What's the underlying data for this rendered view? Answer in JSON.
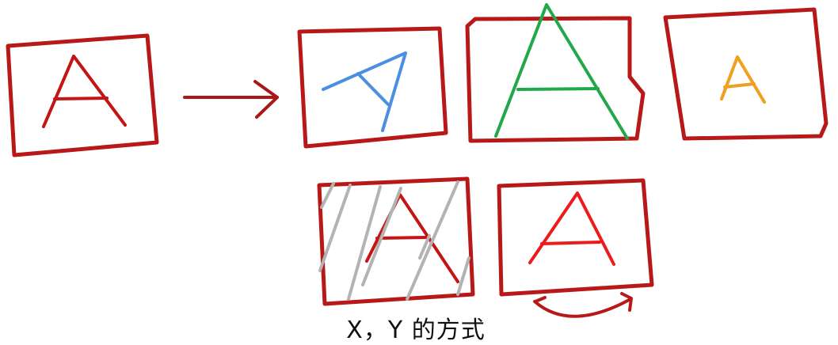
{
  "diagram": {
    "description_label": "",
    "colors": {
      "frame": "#b81818",
      "arrow": "#a81818",
      "letter_original": "#c41414",
      "letter_rotated": "#4a8fe0",
      "letter_stretched": "#22a84a",
      "letter_scaled": "#f0a020",
      "hatch": "#b3b3b3",
      "letter_flipped": "#ee1b1b",
      "flip_arrow": "#b81818"
    },
    "panels": [
      {
        "id": "original",
        "letter": "A"
      },
      {
        "id": "rotated",
        "letter": "A"
      },
      {
        "id": "stretched",
        "letter": "A"
      },
      {
        "id": "shrunk",
        "letter": "A"
      },
      {
        "id": "noised",
        "letter": "A"
      },
      {
        "id": "flipped",
        "letter": "A"
      }
    ]
  },
  "subtitle": {
    "text": "X，Y 的方式"
  }
}
